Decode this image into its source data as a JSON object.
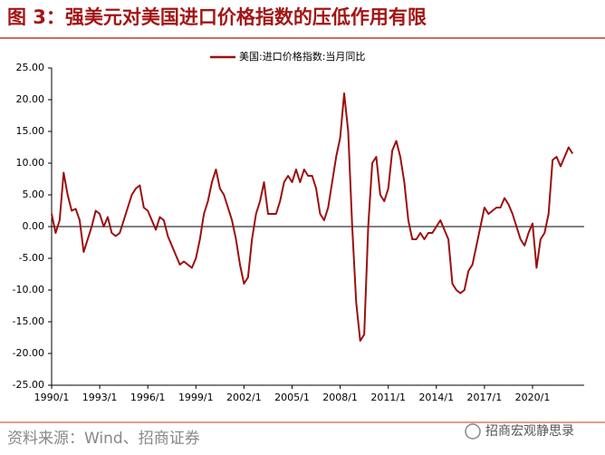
{
  "chart_data": {
    "type": "line",
    "title": "图 3：强美元对美国进口价格指数的压低作用有限",
    "source": "资料来源：Wind、招商证券",
    "watermark": "招商宏观静思录",
    "categories": [
      "1990/1",
      null,
      null,
      null,
      null,
      null,
      null,
      null,
      null,
      null,
      null,
      null,
      "1993/1",
      null,
      null,
      null,
      null,
      null,
      null,
      null,
      null,
      null,
      null,
      null,
      "1996/1",
      null,
      null,
      null,
      null,
      null,
      null,
      null,
      null,
      null,
      null,
      null,
      "1999/1",
      null,
      null,
      null,
      null,
      null,
      null,
      null,
      null,
      null,
      null,
      null,
      "2002/1",
      null,
      null,
      null,
      null,
      null,
      null,
      null,
      null,
      null,
      null,
      null,
      "2005/1",
      null,
      null,
      null,
      null,
      null,
      null,
      null,
      null,
      null,
      null,
      null,
      "2008/1",
      null,
      null,
      null,
      null,
      null,
      null,
      null,
      null,
      null,
      null,
      null,
      "2011/1",
      null,
      null,
      null,
      null,
      null,
      null,
      null,
      null,
      null,
      null,
      null,
      "2014/1",
      null,
      null,
      null,
      null,
      null,
      null,
      null,
      null,
      null,
      null,
      null,
      "2017/1",
      null,
      null,
      null,
      null,
      null,
      null,
      null,
      null,
      null,
      null,
      null,
      "2020/1",
      null,
      null,
      null,
      null,
      null,
      null,
      null,
      null,
      null,
      null
    ],
    "series": [
      {
        "name": "美国:进口价格指数:当月同比",
        "color": "#9b1010",
        "values": [
          2,
          -1,
          1,
          8.5,
          5,
          2.5,
          2.8,
          1,
          -4,
          -2,
          0,
          2.5,
          2,
          0,
          1.5,
          -1,
          -1.5,
          -1,
          1,
          3,
          5,
          6,
          6.5,
          3,
          2.5,
          1,
          -0.5,
          1.5,
          1,
          -1.5,
          -3,
          -4.5,
          -6,
          -5.5,
          -6,
          -6.5,
          -5,
          -2,
          2,
          4,
          7,
          9,
          6,
          5,
          3,
          1,
          -2,
          -6,
          -9,
          -8,
          -2,
          2,
          4,
          7,
          2,
          2,
          2,
          4,
          7,
          8,
          7,
          9,
          7,
          9,
          8,
          8,
          6,
          2,
          1,
          3,
          7,
          11,
          14,
          21,
          15,
          0,
          -12,
          -18,
          -17,
          0,
          10,
          11,
          5,
          4,
          6,
          12,
          13.5,
          11,
          7,
          1,
          -2,
          -2,
          -1,
          -2,
          -1,
          -1,
          0,
          1,
          -0.5,
          -2,
          -9,
          -10,
          -10.5,
          -10,
          -7,
          -6,
          -3,
          0,
          3,
          2,
          2.5,
          3,
          3,
          4.5,
          3.5,
          2,
          0,
          -2,
          -3,
          -1,
          0.5,
          -6.5,
          -2,
          -1,
          2,
          10.5,
          11,
          9.5,
          11,
          12.5,
          11.5
        ]
      }
    ],
    "ylim": [
      -25,
      25
    ],
    "yticks": [
      {
        "value": -25,
        "label": "-25.00"
      },
      {
        "value": -20,
        "label": "-20.00"
      },
      {
        "value": -15,
        "label": "-15.00"
      },
      {
        "value": -10,
        "label": "-10.00"
      },
      {
        "value": -5,
        "label": "-5.00"
      },
      {
        "value": 0,
        "label": "0.00"
      },
      {
        "value": 5,
        "label": "5.00"
      },
      {
        "value": 10,
        "label": "10.00"
      },
      {
        "value": 15,
        "label": "15.00"
      },
      {
        "value": 20,
        "label": "20.00"
      },
      {
        "value": 25,
        "label": "25.00"
      }
    ],
    "legend": "top"
  }
}
